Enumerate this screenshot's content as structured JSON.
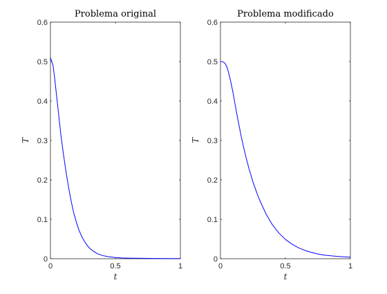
{
  "chart_data": [
    {
      "type": "line",
      "title": "Problema original",
      "xlabel": "t",
      "ylabel": "T",
      "xlim": [
        0,
        1
      ],
      "ylim": [
        0,
        0.6
      ],
      "xticks": [
        "0",
        "0.5",
        "1"
      ],
      "yticks": [
        "0",
        "0.1",
        "0.2",
        "0.3",
        "0.4",
        "0.5",
        "0.6"
      ],
      "grid": false,
      "series": [
        {
          "color": "#0000ff",
          "x": [
            0,
            0.01,
            0.02,
            0.03,
            0.04,
            0.05,
            0.06,
            0.07,
            0.08,
            0.09,
            0.1,
            0.12,
            0.14,
            0.16,
            0.18,
            0.2,
            0.22,
            0.24,
            0.26,
            0.28,
            0.3,
            0.33,
            0.36,
            0.4,
            0.45,
            0.5,
            0.55,
            0.6,
            0.7,
            0.8,
            0.9,
            1.0
          ],
          "y": [
            0.51,
            0.5,
            0.49,
            0.465,
            0.435,
            0.405,
            0.375,
            0.345,
            0.315,
            0.29,
            0.265,
            0.22,
            0.18,
            0.145,
            0.115,
            0.092,
            0.072,
            0.057,
            0.045,
            0.035,
            0.027,
            0.019,
            0.013,
            0.008,
            0.005,
            0.003,
            0.002,
            0.0015,
            0.001,
            0.0007,
            0.0004,
            0.0003
          ]
        }
      ]
    },
    {
      "type": "line",
      "title": "Problema modificado",
      "xlabel": "t",
      "ylabel": "T",
      "xlim": [
        0,
        1
      ],
      "ylim": [
        0,
        0.6
      ],
      "xticks": [
        "0",
        "0.5",
        "1"
      ],
      "yticks": [
        "0",
        "0.1",
        "0.2",
        "0.3",
        "0.4",
        "0.5",
        "0.6"
      ],
      "grid": false,
      "series": [
        {
          "color": "#0000ff",
          "x": [
            0,
            0.01,
            0.02,
            0.03,
            0.04,
            0.05,
            0.06,
            0.07,
            0.08,
            0.09,
            0.1,
            0.12,
            0.14,
            0.16,
            0.18,
            0.2,
            0.22,
            0.25,
            0.28,
            0.3,
            0.35,
            0.4,
            0.45,
            0.5,
            0.55,
            0.6,
            0.65,
            0.7,
            0.75,
            0.8,
            0.85,
            0.9,
            0.95,
            1.0
          ],
          "y": [
            0.5,
            0.5,
            0.499,
            0.497,
            0.493,
            0.486,
            0.475,
            0.462,
            0.448,
            0.432,
            0.415,
            0.378,
            0.343,
            0.31,
            0.28,
            0.253,
            0.228,
            0.195,
            0.167,
            0.15,
            0.114,
            0.086,
            0.065,
            0.049,
            0.037,
            0.028,
            0.021,
            0.016,
            0.012,
            0.009,
            0.0075,
            0.006,
            0.0048,
            0.004
          ]
        }
      ]
    }
  ]
}
